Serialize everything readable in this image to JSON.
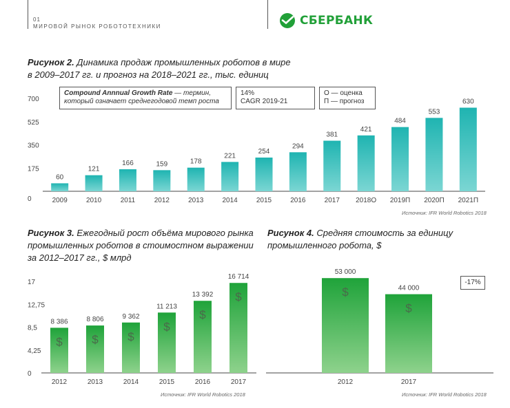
{
  "header": {
    "page_number": "01",
    "section": "МИРОВОЙ РЫНОК РОБОТОТЕХНИКИ",
    "logo_text": "СБЕРБАНК"
  },
  "colors": {
    "teal": "#1fb4b1",
    "teal_light": "#7bd6d3",
    "green": "#1fa33a",
    "green_light": "#8ed28c",
    "brand": "#21a038"
  },
  "fig2": {
    "label": "Рисунок 2.",
    "title_rest": "Динамика продаж промышленных роботов в мире",
    "title_line2": "в 2009–2017 гг. и прогноз на 2018–2021 гг., тыс. единиц",
    "box1_bold": "Compound Annnual Growth Rate",
    "box1_rest": " — термин,",
    "box1_line2": "который означает среднегодовой темп роста",
    "box2_line1": "14%",
    "box2_line2": "CAGR 2019-21",
    "box3_line1": "О — оценка",
    "box3_line2": "П — прогноз",
    "source": "Источник: IFR World Robotics 2018"
  },
  "fig3": {
    "label": "Рисунок 3.",
    "title_rest": "Ежегодный рост объёма мирового рынка",
    "title_line2": "промышленных роботов в стоимостном выражении",
    "title_line3": "за 2012–2017 гг., $ млрд",
    "source": "Источник: IFR World Robotics 2018"
  },
  "fig4": {
    "label": "Рисунок 4.",
    "title_rest": "Средняя стоимость за единицу",
    "title_line2": "промышленного робота, $",
    "change_badge": "-17%",
    "source": "Источник: IFR World Robotics 2018"
  },
  "chart_data": [
    {
      "type": "bar",
      "categories": [
        "2009",
        "2010",
        "2011",
        "2012",
        "2013",
        "2014",
        "2015",
        "2016",
        "2017",
        "2018О",
        "2019П",
        "2020П",
        "2021П"
      ],
      "values": [
        60,
        121,
        166,
        159,
        178,
        221,
        254,
        294,
        381,
        421,
        484,
        553,
        630
      ],
      "value_labels": [
        "60",
        "121",
        "166",
        "159",
        "178",
        "221",
        "254",
        "294",
        "381",
        "421",
        "484",
        "553",
        "630"
      ],
      "yticks": [
        "0",
        "175",
        "350",
        "525",
        "700"
      ],
      "ylim": [
        0,
        700
      ]
    },
    {
      "type": "bar",
      "categories": [
        "2012",
        "2013",
        "2014",
        "2015",
        "2016",
        "2017"
      ],
      "values": [
        8386,
        8806,
        9362,
        11213,
        13392,
        16714
      ],
      "value_labels": [
        "8 386",
        "8 806",
        "9 362",
        "11 213",
        "13 392",
        "16 714"
      ],
      "bar_symbol": "$",
      "yticks": [
        "0",
        "4,25",
        "8,5",
        "12,75",
        "17"
      ],
      "ylim": [
        0,
        17000
      ]
    },
    {
      "type": "bar",
      "categories": [
        "2012",
        "2017"
      ],
      "values": [
        53000,
        44000
      ],
      "value_labels": [
        "53 000",
        "44 000"
      ],
      "bar_symbol": "$",
      "ylim": [
        0,
        60000
      ]
    }
  ]
}
